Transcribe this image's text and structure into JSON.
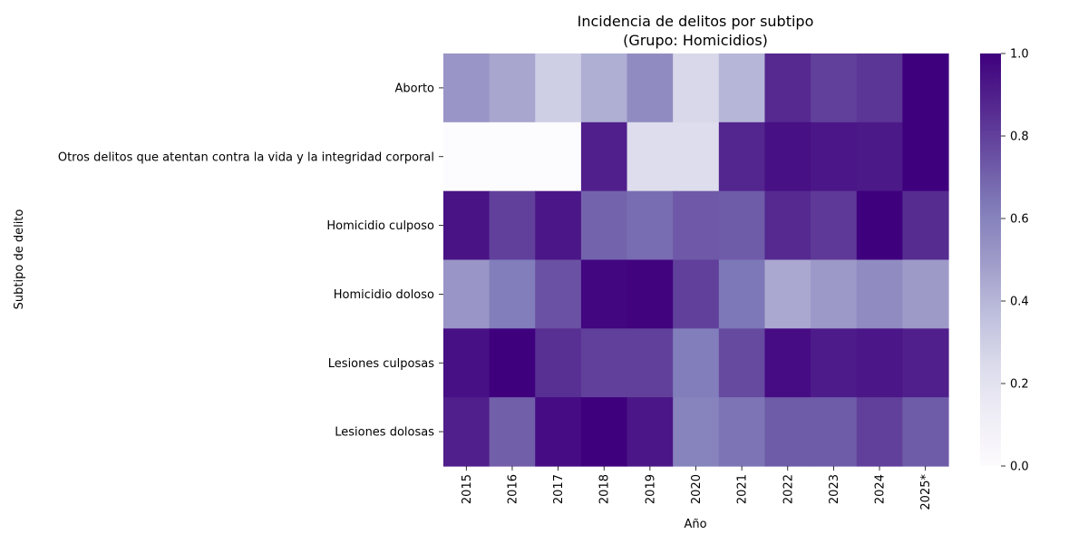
{
  "chart_data": {
    "type": "heatmap",
    "title": "Incidencia de delitos por subtipo",
    "subtitle": "(Grupo: Homicidios)",
    "xlabel": "Año",
    "ylabel": "Subtipo de delito",
    "x": [
      "2015",
      "2016",
      "2017",
      "2018",
      "2019",
      "2020",
      "2021",
      "2022",
      "2023",
      "2024",
      "2025*"
    ],
    "y": [
      "Aborto",
      "Otros delitos que atentan contra la vida y la integridad corporal",
      "Homicidio culposo",
      "Homicidio doloso",
      "Lesiones culposas",
      "Lesiones dolosas"
    ],
    "values": [
      [
        0.52,
        0.46,
        0.3,
        0.43,
        0.56,
        0.26,
        0.4,
        0.87,
        0.8,
        0.83,
        1.0
      ],
      [
        0.0,
        0.0,
        0.0,
        0.9,
        0.23,
        0.23,
        0.88,
        0.95,
        0.93,
        0.92,
        1.0
      ],
      [
        0.94,
        0.8,
        0.93,
        0.7,
        0.67,
        0.73,
        0.72,
        0.87,
        0.82,
        1.0,
        0.86
      ],
      [
        0.52,
        0.62,
        0.75,
        0.98,
        0.99,
        0.8,
        0.64,
        0.45,
        0.51,
        0.56,
        0.5
      ],
      [
        0.95,
        1.0,
        0.85,
        0.8,
        0.8,
        0.62,
        0.77,
        0.96,
        0.91,
        0.93,
        0.9
      ],
      [
        0.9,
        0.71,
        0.96,
        1.0,
        0.93,
        0.6,
        0.65,
        0.72,
        0.72,
        0.8,
        0.72
      ]
    ],
    "colorbar": {
      "range": [
        0,
        1
      ],
      "ticks": [
        "0.0",
        "0.2",
        "0.4",
        "0.6",
        "0.8",
        "1.0"
      ],
      "colormap": "Purples"
    },
    "grid": false
  }
}
